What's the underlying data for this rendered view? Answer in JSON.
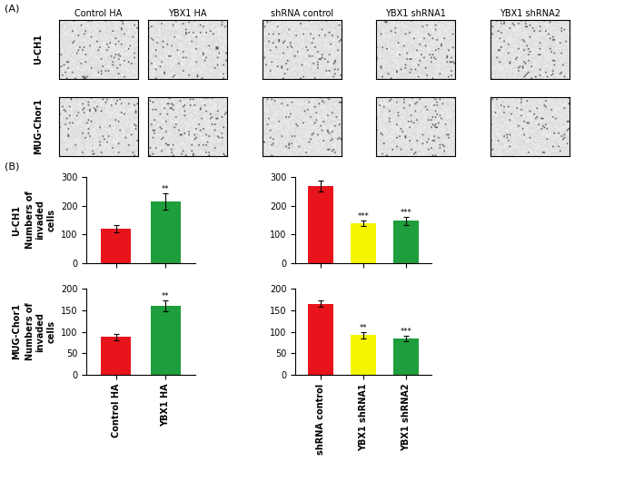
{
  "panel_A": {
    "label": "(A)",
    "columns": [
      "Control HA",
      "YBX1 HA",
      "shRNA control",
      "YBX1 shRNA1",
      "YBX1 shRNA2"
    ]
  },
  "panel_B": {
    "label": "(B)"
  },
  "rows": [
    "U-CH1",
    "MUG-Chor1"
  ],
  "chart_data": [
    {
      "type": "bar",
      "row": 0,
      "ylabel": "Numbers of invaded cells",
      "categories": [
        "Control HA",
        "YBX1 HA"
      ],
      "values": [
        120,
        215
      ],
      "errors": [
        12,
        28
      ],
      "significance": [
        null,
        "**"
      ],
      "colors": [
        "#e8141c",
        "#1e9e3c"
      ],
      "ylim": [
        0,
        300
      ],
      "yticks": [
        0,
        100,
        200,
        300
      ],
      "tick_labels": "y"
    },
    {
      "type": "bar",
      "row": 0,
      "categories": [
        "shRNA control",
        "YBX1 shRNA1",
        "YBX1 shRNA2"
      ],
      "values": [
        268,
        140,
        148
      ],
      "errors": [
        18,
        10,
        14
      ],
      "significance": [
        null,
        "***",
        "***"
      ],
      "colors": [
        "#e8141c",
        "#f5f500",
        "#1e9e3c"
      ],
      "ylim": [
        0,
        300
      ],
      "yticks": [
        0,
        100,
        200,
        300
      ],
      "tick_labels": "y"
    },
    {
      "type": "bar",
      "row": 1,
      "ylabel": "Numbers of invaded cells",
      "categories": [
        "Control HA",
        "YBX1 HA"
      ],
      "values": [
        88,
        160
      ],
      "errors": [
        7,
        12
      ],
      "significance": [
        null,
        "**"
      ],
      "colors": [
        "#e8141c",
        "#1e9e3c"
      ],
      "ylim": [
        0,
        200
      ],
      "yticks": [
        0,
        50,
        100,
        150,
        200
      ]
    },
    {
      "type": "bar",
      "row": 1,
      "categories": [
        "shRNA control",
        "YBX1 shRNA1",
        "YBX1 shRNA2"
      ],
      "values": [
        165,
        92,
        84
      ],
      "errors": [
        8,
        7,
        6
      ],
      "significance": [
        null,
        "**",
        "***"
      ],
      "colors": [
        "#e8141c",
        "#f5f500",
        "#1e9e3c"
      ],
      "ylim": [
        0,
        200
      ],
      "yticks": [
        0,
        50,
        100,
        150,
        200
      ]
    }
  ]
}
